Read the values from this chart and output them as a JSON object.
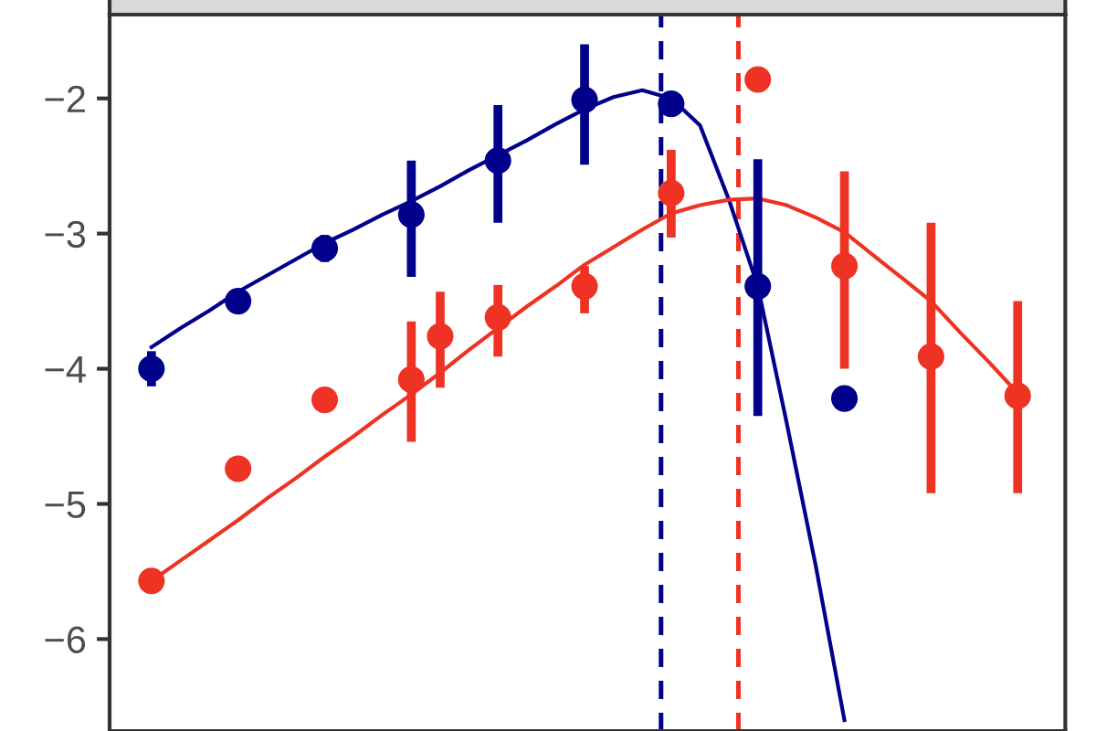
{
  "chart_data": {
    "type": "scatter",
    "categories": [
      null,
      null,
      null,
      null,
      null,
      null,
      null,
      null,
      null,
      null,
      null,
      null,
      null,
      null,
      null,
      null,
      null,
      null,
      null,
      null,
      null,
      null,
      null,
      null,
      null,
      null,
      null,
      null,
      null,
      null,
      null
    ],
    "ylim": [
      -6.68,
      -1.38
    ],
    "yticks": [
      {
        "value": -2,
        "label": "−2"
      },
      {
        "value": -3,
        "label": "−3"
      },
      {
        "value": -4,
        "label": "−4"
      },
      {
        "value": -5,
        "label": "−5"
      },
      {
        "value": -6,
        "label": "−6"
      }
    ],
    "marker": "circle",
    "series": [
      {
        "type": "line",
        "marker": "none",
        "color": "#00008b",
        "values": [
          -3.84,
          -3.7,
          -3.57,
          -3.43,
          -3.31,
          -3.19,
          -3.07,
          -2.97,
          -2.86,
          -2.76,
          -2.65,
          -2.53,
          -2.42,
          -2.31,
          -2.19,
          -2.08,
          -1.99,
          -1.94,
          -2.0,
          -2.2,
          -2.75,
          -3.39,
          -4.4,
          -5.45,
          -6.6,
          null,
          null,
          null,
          null,
          null,
          null
        ]
      },
      {
        "type": "line",
        "marker": "none",
        "color": "#ee3224",
        "values": [
          -5.57,
          -5.42,
          -5.27,
          -5.12,
          -4.96,
          -4.81,
          -4.65,
          -4.5,
          -4.34,
          -4.19,
          -4.03,
          -3.86,
          -3.7,
          -3.54,
          -3.39,
          -3.23,
          -3.1,
          -2.97,
          -2.85,
          -2.79,
          -2.75,
          -2.74,
          -2.79,
          -2.88,
          -2.99,
          -3.16,
          -3.33,
          -3.5,
          -3.73,
          -3.95,
          -4.18
        ]
      },
      {
        "color": "#00008b",
        "values": [
          -4.0,
          null,
          null,
          -3.5,
          null,
          null,
          -3.11,
          null,
          null,
          -2.86,
          null,
          null,
          -2.46,
          null,
          null,
          -2.01,
          null,
          null,
          -2.04,
          null,
          null,
          -3.39,
          null,
          null,
          -4.22,
          null,
          null,
          null,
          null,
          null,
          null
        ],
        "errors": [
          [
            -4.13,
            -3.87
          ],
          null,
          null,
          null,
          null,
          null,
          [
            -3.21,
            -3.01
          ],
          null,
          null,
          [
            -3.32,
            -2.46
          ],
          null,
          null,
          [
            -2.92,
            -2.05
          ],
          null,
          null,
          [
            -2.49,
            -1.6
          ],
          null,
          null,
          null,
          null,
          null,
          [
            -4.35,
            -2.45
          ],
          null,
          null,
          null,
          null,
          null,
          null,
          null,
          null,
          null
        ]
      },
      {
        "color": "#ee3224",
        "values": [
          -5.57,
          null,
          null,
          -4.74,
          null,
          null,
          -4.23,
          null,
          null,
          -4.08,
          -3.76,
          null,
          -3.62,
          null,
          null,
          -3.39,
          null,
          null,
          -2.7,
          null,
          null,
          -1.86,
          null,
          null,
          -3.24,
          null,
          null,
          -3.91,
          null,
          null,
          -4.2
        ],
        "errors": [
          null,
          null,
          null,
          null,
          null,
          null,
          null,
          null,
          null,
          [
            -4.54,
            -3.65
          ],
          [
            -4.14,
            -3.43
          ],
          null,
          [
            -3.91,
            -3.38
          ],
          null,
          null,
          [
            -3.59,
            -3.24
          ],
          null,
          null,
          [
            -3.03,
            -2.38
          ],
          null,
          null,
          null,
          null,
          null,
          [
            -4.0,
            -2.54
          ],
          null,
          null,
          [
            -4.92,
            -2.92
          ],
          null,
          null,
          [
            -4.92,
            -3.5
          ]
        ]
      }
    ]
  }
}
